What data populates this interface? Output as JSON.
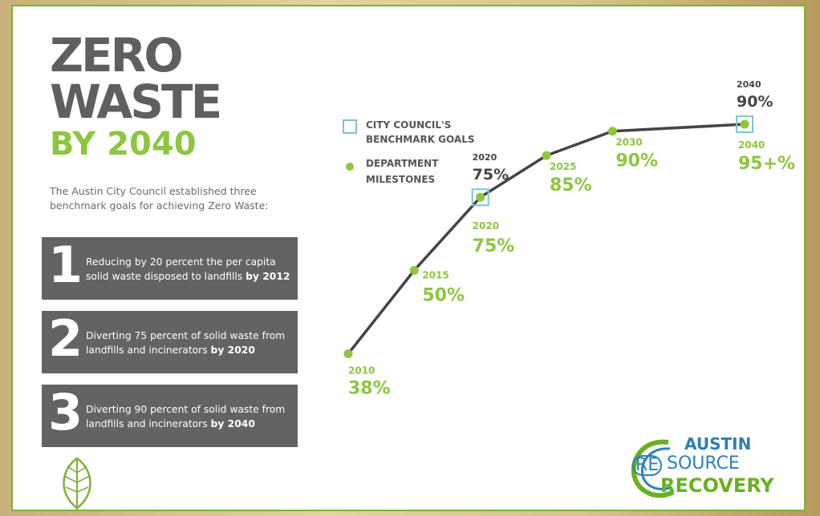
{
  "title": {
    "line1": "ZERO",
    "line2": "WASTE",
    "line3": "BY 2040"
  },
  "intro": "The Austin City Council established three benchmark goals for achieving Zero Waste:",
  "goals": [
    {
      "number": "1",
      "text": "Reducing by 20 percent the per capita solid waste disposed to landfills ",
      "bold": "by 2012"
    },
    {
      "number": "2",
      "text": "Diverting 75 percent of solid waste from landfills and incinerators ",
      "bold": "by 2020"
    },
    {
      "number": "3",
      "text": "Diverting 90 percent of solid waste from landfills and incinerators ",
      "bold": "by 2040"
    }
  ],
  "legend": {
    "benchmark_line1": "CITY COUNCIL'S",
    "benchmark_line2": "BENCHMARK GOALS",
    "milestones_line1": "DEPARTMENT",
    "milestones_line2": "MILESTONES"
  },
  "logo": {
    "austin": "AUSTIN",
    "re": "RE",
    "source": "SOURCE",
    "recovery": "RECOVERY"
  },
  "colors": {
    "green": "#8dc63f",
    "dark": "#444444",
    "grey_box": "#636363",
    "benchmark": "#7ec4cf"
  },
  "chart_data": {
    "type": "line",
    "x": [
      2010,
      2015,
      2020,
      2025,
      2030,
      2040
    ],
    "series": [
      {
        "name": "DEPARTMENT MILESTONES",
        "values": [
          38,
          50,
          75,
          85,
          90,
          95
        ],
        "labels": [
          "2010",
          "2015",
          "2020",
          "2025",
          "2030",
          "2040"
        ],
        "value_labels": [
          "38%",
          "50%",
          "75%",
          "85%",
          "90%",
          "95+%"
        ]
      },
      {
        "name": "CITY COUNCIL'S BENCHMARK GOALS",
        "x": [
          2020,
          2040
        ],
        "values": [
          75,
          90
        ],
        "labels": [
          "2020",
          "2040"
        ],
        "value_labels": [
          "75%",
          "90%"
        ]
      }
    ],
    "line_values": [
      25,
      49,
      70,
      82,
      89,
      91
    ],
    "xlim": [
      2010,
      2040
    ],
    "grid": false
  }
}
